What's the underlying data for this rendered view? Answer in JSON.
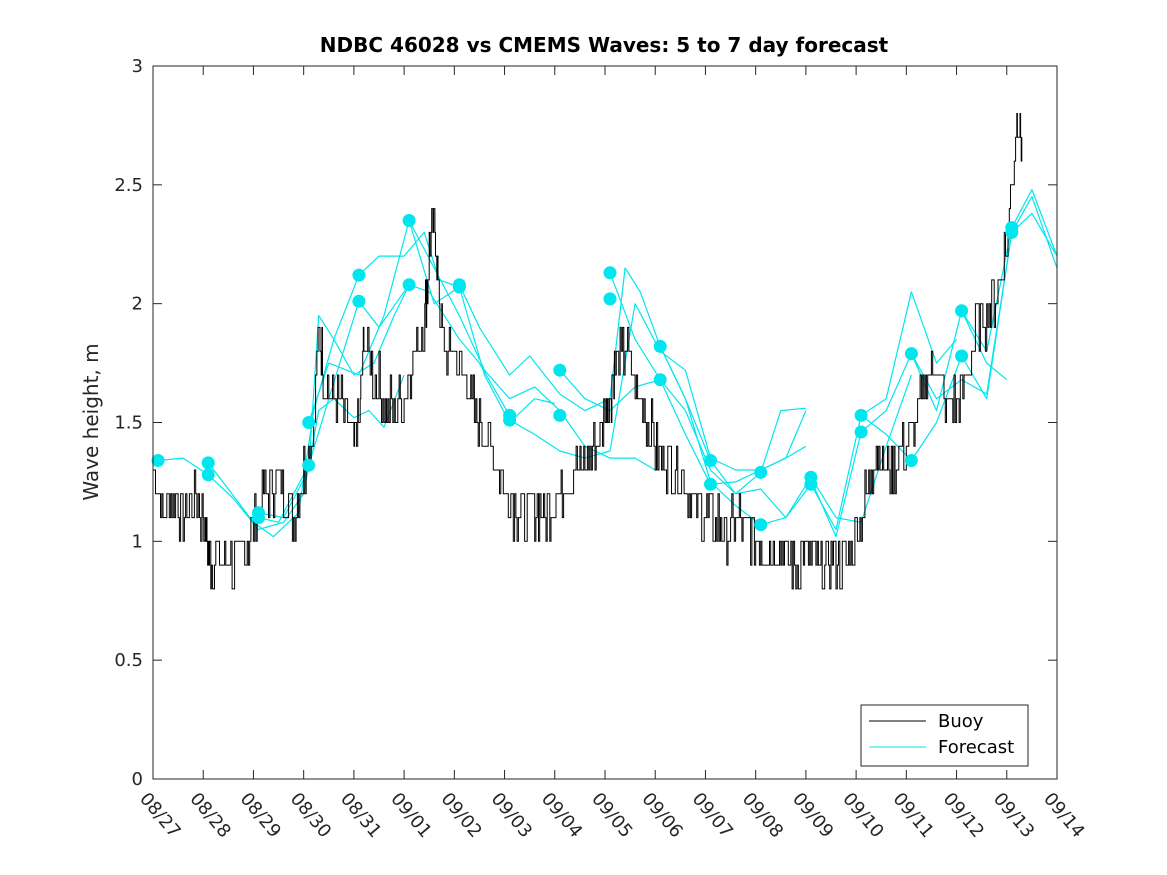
{
  "chart_data": {
    "type": "line",
    "title": "NDBC 46028 vs CMEMS Waves: 5 to 7 day forecast",
    "xlabel": "",
    "ylabel": "Wave height, m",
    "xlim": [
      0,
      18
    ],
    "ylim": [
      0,
      3
    ],
    "x_ticks": [
      {
        "x": 0,
        "label": "08/27"
      },
      {
        "x": 1,
        "label": "08/28"
      },
      {
        "x": 2,
        "label": "08/29"
      },
      {
        "x": 3,
        "label": "08/30"
      },
      {
        "x": 4,
        "label": "08/31"
      },
      {
        "x": 5,
        "label": "09/01"
      },
      {
        "x": 6,
        "label": "09/02"
      },
      {
        "x": 7,
        "label": "09/03"
      },
      {
        "x": 8,
        "label": "09/04"
      },
      {
        "x": 9,
        "label": "09/05"
      },
      {
        "x": 10,
        "label": "09/06"
      },
      {
        "x": 11,
        "label": "09/07"
      },
      {
        "x": 12,
        "label": "09/08"
      },
      {
        "x": 13,
        "label": "09/09"
      },
      {
        "x": 14,
        "label": "09/10"
      },
      {
        "x": 15,
        "label": "09/11"
      },
      {
        "x": 16,
        "label": "09/12"
      },
      {
        "x": 17,
        "label": "09/13"
      },
      {
        "x": 18,
        "label": "09/14"
      }
    ],
    "y_ticks": [
      {
        "y": 0,
        "label": "0"
      },
      {
        "y": 0.5,
        "label": "0.5"
      },
      {
        "y": 1,
        "label": "1"
      },
      {
        "y": 1.5,
        "label": "1.5"
      },
      {
        "y": 2,
        "label": "2"
      },
      {
        "y": 2.5,
        "label": "2.5"
      },
      {
        "y": 3,
        "label": "3"
      }
    ],
    "legend": {
      "position": "bottom-right",
      "entries": [
        "Buoy",
        "Forecast"
      ]
    },
    "colors": {
      "buoy": "#000000",
      "forecast": "#00e6ee",
      "axes": "#262626"
    },
    "buoy": {
      "name": "Buoy",
      "x": [
        0.0,
        0.2,
        0.4,
        0.6,
        0.8,
        1.0,
        1.1,
        1.2,
        1.4,
        1.6,
        1.8,
        2.0,
        2.2,
        2.4,
        2.6,
        2.8,
        3.0,
        3.2,
        3.3,
        3.4,
        3.6,
        3.8,
        4.0,
        4.1,
        4.2,
        4.4,
        4.6,
        4.8,
        5.0,
        5.2,
        5.4,
        5.5,
        5.6,
        5.7,
        5.8,
        6.0,
        6.2,
        6.4,
        6.6,
        6.8,
        7.0,
        7.2,
        7.4,
        7.6,
        7.8,
        8.0,
        8.2,
        8.4,
        8.6,
        8.8,
        9.0,
        9.1,
        9.2,
        9.4,
        9.6,
        9.8,
        10.0,
        10.2,
        10.4,
        10.6,
        10.8,
        11.0,
        11.2,
        11.4,
        11.6,
        11.8,
        12.0,
        12.2,
        12.4,
        12.6,
        12.8,
        13.0,
        13.2,
        13.4,
        13.6,
        13.8,
        14.0,
        14.2,
        14.4,
        14.6,
        14.8,
        15.0,
        15.2,
        15.4,
        15.6,
        15.8,
        16.0,
        16.2,
        16.4,
        16.6,
        16.8,
        17.0,
        17.2,
        17.3
      ],
      "y": [
        1.3,
        1.1,
        1.2,
        1.1,
        1.2,
        1.1,
        0.95,
        0.9,
        0.95,
        0.9,
        0.95,
        1.05,
        1.2,
        1.25,
        1.2,
        1.1,
        1.3,
        1.5,
        1.9,
        1.7,
        1.6,
        1.55,
        1.4,
        1.5,
        1.85,
        1.7,
        1.6,
        1.55,
        1.6,
        1.8,
        1.9,
        2.2,
        2.35,
        2.0,
        1.8,
        1.8,
        1.7,
        1.55,
        1.45,
        1.35,
        1.2,
        1.15,
        1.1,
        1.15,
        1.1,
        1.2,
        1.25,
        1.3,
        1.3,
        1.4,
        1.55,
        1.6,
        1.75,
        1.8,
        1.65,
        1.55,
        1.4,
        1.35,
        1.3,
        1.25,
        1.15,
        1.1,
        1.1,
        1.05,
        1.1,
        1.05,
        1.0,
        1.0,
        0.95,
        0.95,
        0.9,
        0.95,
        0.9,
        0.9,
        0.92,
        0.9,
        1.05,
        1.2,
        1.4,
        1.3,
        1.35,
        1.4,
        1.5,
        1.7,
        1.75,
        1.55,
        1.6,
        1.7,
        1.9,
        1.95,
        2.05,
        2.25,
        2.8,
        2.7
      ]
    },
    "forecast_series": [
      {
        "name": "Forecast",
        "x": [
          0.1,
          0.6,
          1.1,
          1.6,
          2.1,
          2.6,
          3.0,
          3.3,
          3.6,
          4.0,
          4.3,
          4.6,
          5.0
        ],
        "y": [
          1.34,
          1.35,
          1.28,
          1.18,
          1.05,
          1.08,
          1.2,
          1.55,
          1.6,
          1.52,
          1.55,
          1.48,
          1.7
        ]
      },
      {
        "name": "Forecast",
        "x": [
          1.1,
          1.5,
          2.0,
          2.4,
          2.9,
          3.2,
          3.6,
          4.0,
          4.4,
          4.8,
          5.1
        ],
        "y": [
          1.33,
          1.22,
          1.08,
          1.02,
          1.12,
          1.55,
          1.85,
          1.7,
          1.75,
          1.95,
          2.08
        ]
      },
      {
        "name": "Forecast",
        "x": [
          2.1,
          2.6,
          3.1,
          3.3,
          3.6,
          4.1,
          4.5,
          5.0,
          5.4,
          5.7,
          6.1
        ],
        "y": [
          1.12,
          1.1,
          1.3,
          1.95,
          1.85,
          2.12,
          2.2,
          2.2,
          2.3,
          2.1,
          2.07
        ]
      },
      {
        "name": "Forecast",
        "x": [
          2.1,
          2.5,
          3.1,
          3.5,
          4.1,
          4.5,
          5.1,
          5.5,
          6.1,
          6.5,
          7.1
        ],
        "y": [
          1.1,
          1.08,
          1.32,
          1.6,
          2.01,
          1.9,
          2.08,
          2.05,
          1.85,
          1.75,
          1.53
        ]
      },
      {
        "name": "Forecast",
        "x": [
          3.1,
          3.5,
          4.1,
          4.6,
          5.1,
          5.6,
          6.1,
          6.6,
          7.1,
          7.6,
          8.0
        ],
        "y": [
          1.5,
          1.75,
          1.7,
          1.95,
          2.35,
          2.0,
          2.07,
          1.7,
          1.5,
          1.6,
          1.58
        ]
      },
      {
        "name": "Forecast",
        "x": [
          5.1,
          5.6,
          6.1,
          6.6,
          7.1,
          7.6,
          8.1,
          8.6,
          9.1,
          9.6,
          10.0
        ],
        "y": [
          2.35,
          2.15,
          1.95,
          1.72,
          1.6,
          1.65,
          1.55,
          1.4,
          1.35,
          1.35,
          1.3
        ]
      },
      {
        "name": "Forecast",
        "x": [
          6.1,
          6.5,
          7.1,
          7.5,
          8.1,
          8.6,
          9.1,
          9.4,
          9.7,
          10.1,
          10.6,
          11.1
        ],
        "y": [
          2.08,
          1.9,
          1.7,
          1.78,
          1.62,
          1.55,
          1.6,
          2.15,
          2.05,
          1.82,
          1.6,
          1.34
        ]
      },
      {
        "name": "Forecast",
        "x": [
          7.1,
          7.6,
          8.1,
          8.6,
          9.1,
          9.6,
          10.1,
          10.6,
          11.1,
          11.6,
          12.1,
          12.6,
          13.0
        ],
        "y": [
          1.51,
          1.45,
          1.38,
          1.35,
          1.38,
          2.0,
          1.8,
          1.72,
          1.35,
          1.3,
          1.3,
          1.35,
          1.4
        ]
      },
      {
        "name": "Forecast",
        "x": [
          8.1,
          8.6,
          9.1,
          9.6,
          10.1,
          10.6,
          11.1,
          11.6,
          12.1,
          12.6,
          13.0
        ],
        "y": [
          1.72,
          1.6,
          1.55,
          1.65,
          1.68,
          1.45,
          1.24,
          1.25,
          1.3,
          1.35,
          1.55
        ]
      },
      {
        "name": "Forecast",
        "x": [
          9.1,
          9.6,
          10.1,
          10.6,
          11.1,
          11.6,
          12.1,
          12.5,
          13.0
        ],
        "y": [
          2.13,
          1.85,
          1.68,
          1.55,
          1.3,
          1.2,
          1.29,
          1.55,
          1.56
        ]
      },
      {
        "name": "Forecast",
        "x": [
          10.1,
          10.6,
          11.1,
          11.6,
          12.1,
          12.6,
          13.1,
          13.6,
          14.1,
          14.6,
          15.1
        ],
        "y": [
          1.82,
          1.6,
          1.25,
          1.15,
          1.07,
          1.1,
          1.27,
          1.1,
          1.08,
          1.4,
          1.7
        ]
      },
      {
        "name": "Forecast",
        "x": [
          11.1,
          11.6,
          12.1,
          12.6,
          13.1,
          13.6,
          14.1,
          14.6,
          15.1,
          15.6,
          16.0
        ],
        "y": [
          1.34,
          1.2,
          1.22,
          1.1,
          1.24,
          1.05,
          1.53,
          1.6,
          2.05,
          1.75,
          1.85
        ]
      },
      {
        "name": "Forecast",
        "x": [
          13.1,
          13.6,
          14.1,
          14.6,
          15.1,
          15.6,
          16.1,
          16.6,
          17.0
        ],
        "y": [
          1.26,
          1.02,
          1.46,
          1.55,
          1.79,
          1.55,
          1.97,
          1.75,
          1.68
        ]
      },
      {
        "name": "Forecast",
        "x": [
          14.1,
          14.6,
          15.1,
          15.6,
          16.1,
          16.6,
          17.1,
          17.5,
          18.0
        ],
        "y": [
          1.53,
          1.45,
          1.34,
          1.5,
          1.78,
          1.6,
          2.3,
          2.45,
          2.15
        ]
      },
      {
        "name": "Forecast",
        "x": [
          15.1,
          15.6,
          16.1,
          16.6,
          17.1,
          17.5,
          18.0
        ],
        "y": [
          1.79,
          1.6,
          1.68,
          1.62,
          2.3,
          2.38,
          2.2
        ]
      },
      {
        "name": "Forecast",
        "x": [
          16.1,
          16.6,
          17.1,
          17.5,
          18.0
        ],
        "y": [
          1.97,
          1.8,
          2.32,
          2.48,
          2.2
        ]
      }
    ],
    "forecast_markers": {
      "x": [
        0.1,
        1.1,
        1.1,
        2.1,
        2.1,
        3.1,
        3.1,
        4.1,
        4.1,
        5.1,
        5.1,
        6.1,
        6.1,
        7.1,
        7.1,
        8.1,
        8.1,
        9.1,
        9.1,
        10.1,
        10.1,
        11.1,
        11.1,
        12.1,
        12.1,
        13.1,
        13.1,
        14.1,
        14.1,
        15.1,
        15.1,
        16.1,
        16.1,
        17.1,
        17.1
      ],
      "y": [
        1.34,
        1.33,
        1.28,
        1.12,
        1.1,
        1.5,
        1.32,
        2.12,
        2.01,
        2.35,
        2.08,
        2.08,
        2.07,
        1.53,
        1.51,
        1.72,
        1.53,
        2.13,
        2.02,
        1.82,
        1.68,
        1.34,
        1.24,
        1.29,
        1.07,
        1.27,
        1.24,
        1.53,
        1.46,
        1.79,
        1.34,
        1.97,
        1.78,
        2.32,
        2.3
      ]
    }
  }
}
